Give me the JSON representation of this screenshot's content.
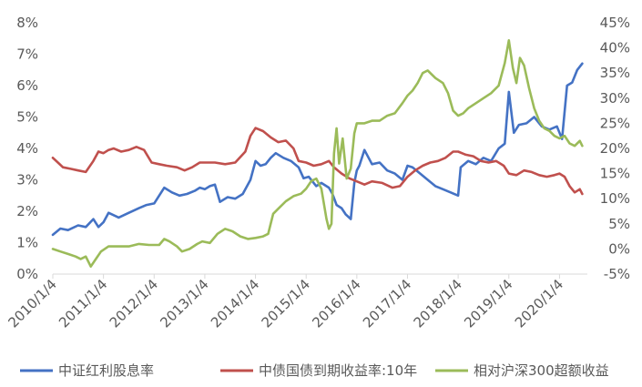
{
  "chart_data": {
    "type": "line",
    "title": "",
    "xlabel": "",
    "ylabel": "",
    "x_ticks": [
      "2010/1/4",
      "2011/1/4",
      "2012/1/4",
      "2013/1/4",
      "2014/1/4",
      "2015/1/4",
      "2016/1/4",
      "2017/1/4",
      "2018/1/4",
      "2019/1/4",
      "2020/1/4"
    ],
    "y_left": {
      "min": 0,
      "max": 8,
      "step": 1,
      "labels": [
        "0%",
        "1%",
        "2%",
        "3%",
        "4%",
        "5%",
        "6%",
        "7%",
        "8%"
      ]
    },
    "y_right": {
      "min": -5,
      "max": 45,
      "step": 5,
      "labels": [
        "-5%",
        "0%",
        "5%",
        "10%",
        "15%",
        "20%",
        "25%",
        "30%",
        "35%",
        "40%",
        "45%"
      ]
    },
    "grid": false,
    "legend_position": "bottom",
    "series": [
      {
        "name": "中证红利股息率",
        "axis": "left",
        "color": "#4472c4",
        "points": [
          [
            2010.0,
            1.25
          ],
          [
            2010.15,
            1.45
          ],
          [
            2010.3,
            1.4
          ],
          [
            2010.5,
            1.55
          ],
          [
            2010.65,
            1.5
          ],
          [
            2010.8,
            1.75
          ],
          [
            2010.9,
            1.5
          ],
          [
            2011.0,
            1.65
          ],
          [
            2011.1,
            1.95
          ],
          [
            2011.3,
            1.8
          ],
          [
            2011.5,
            1.95
          ],
          [
            2011.7,
            2.1
          ],
          [
            2011.85,
            2.2
          ],
          [
            2012.0,
            2.25
          ],
          [
            2012.1,
            2.5
          ],
          [
            2012.2,
            2.75
          ],
          [
            2012.35,
            2.6
          ],
          [
            2012.5,
            2.5
          ],
          [
            2012.65,
            2.55
          ],
          [
            2012.8,
            2.65
          ],
          [
            2012.9,
            2.75
          ],
          [
            2013.0,
            2.7
          ],
          [
            2013.1,
            2.8
          ],
          [
            2013.2,
            2.85
          ],
          [
            2013.3,
            2.3
          ],
          [
            2013.45,
            2.45
          ],
          [
            2013.6,
            2.4
          ],
          [
            2013.75,
            2.55
          ],
          [
            2013.9,
            3.0
          ],
          [
            2014.0,
            3.6
          ],
          [
            2014.1,
            3.45
          ],
          [
            2014.2,
            3.5
          ],
          [
            2014.3,
            3.7
          ],
          [
            2014.4,
            3.85
          ],
          [
            2014.55,
            3.7
          ],
          [
            2014.7,
            3.6
          ],
          [
            2014.85,
            3.4
          ],
          [
            2014.95,
            3.05
          ],
          [
            2015.05,
            3.1
          ],
          [
            2015.2,
            2.8
          ],
          [
            2015.3,
            2.9
          ],
          [
            2015.45,
            2.75
          ],
          [
            2015.52,
            2.55
          ],
          [
            2015.6,
            2.2
          ],
          [
            2015.7,
            2.1
          ],
          [
            2015.78,
            1.9
          ],
          [
            2015.88,
            1.75
          ],
          [
            2015.95,
            2.9
          ],
          [
            2016.0,
            3.3
          ],
          [
            2016.05,
            3.45
          ],
          [
            2016.15,
            3.95
          ],
          [
            2016.3,
            3.5
          ],
          [
            2016.45,
            3.55
          ],
          [
            2016.6,
            3.3
          ],
          [
            2016.75,
            3.2
          ],
          [
            2016.9,
            3.0
          ],
          [
            2017.0,
            3.45
          ],
          [
            2017.1,
            3.4
          ],
          [
            2017.25,
            3.2
          ],
          [
            2017.4,
            3.0
          ],
          [
            2017.55,
            2.8
          ],
          [
            2017.7,
            2.7
          ],
          [
            2017.85,
            2.6
          ],
          [
            2018.0,
            2.5
          ],
          [
            2018.05,
            3.4
          ],
          [
            2018.2,
            3.6
          ],
          [
            2018.35,
            3.5
          ],
          [
            2018.5,
            3.7
          ],
          [
            2018.65,
            3.6
          ],
          [
            2018.8,
            4.0
          ],
          [
            2018.92,
            4.15
          ],
          [
            2019.0,
            5.8
          ],
          [
            2019.1,
            4.5
          ],
          [
            2019.2,
            4.75
          ],
          [
            2019.35,
            4.8
          ],
          [
            2019.5,
            5.0
          ],
          [
            2019.65,
            4.7
          ],
          [
            2019.8,
            4.6
          ],
          [
            2019.95,
            4.7
          ],
          [
            2020.05,
            4.3
          ],
          [
            2020.15,
            6.0
          ],
          [
            2020.25,
            6.1
          ],
          [
            2020.35,
            6.5
          ],
          [
            2020.45,
            6.7
          ]
        ]
      },
      {
        "name": "中债国债到期收益率:10年",
        "axis": "left",
        "color": "#c0504d",
        "points": [
          [
            2010.0,
            3.7
          ],
          [
            2010.1,
            3.55
          ],
          [
            2010.2,
            3.4
          ],
          [
            2010.35,
            3.35
          ],
          [
            2010.5,
            3.3
          ],
          [
            2010.65,
            3.25
          ],
          [
            2010.8,
            3.6
          ],
          [
            2010.9,
            3.9
          ],
          [
            2011.0,
            3.85
          ],
          [
            2011.1,
            3.95
          ],
          [
            2011.2,
            4.0
          ],
          [
            2011.35,
            3.9
          ],
          [
            2011.5,
            3.95
          ],
          [
            2011.65,
            4.05
          ],
          [
            2011.8,
            3.95
          ],
          [
            2011.95,
            3.55
          ],
          [
            2012.1,
            3.5
          ],
          [
            2012.25,
            3.45
          ],
          [
            2012.45,
            3.4
          ],
          [
            2012.6,
            3.3
          ],
          [
            2012.75,
            3.4
          ],
          [
            2012.9,
            3.55
          ],
          [
            2013.0,
            3.55
          ],
          [
            2013.2,
            3.55
          ],
          [
            2013.4,
            3.5
          ],
          [
            2013.6,
            3.55
          ],
          [
            2013.8,
            3.9
          ],
          [
            2013.9,
            4.4
          ],
          [
            2014.0,
            4.65
          ],
          [
            2014.15,
            4.55
          ],
          [
            2014.3,
            4.35
          ],
          [
            2014.45,
            4.2
          ],
          [
            2014.6,
            4.25
          ],
          [
            2014.75,
            4.0
          ],
          [
            2014.85,
            3.6
          ],
          [
            2015.0,
            3.55
          ],
          [
            2015.15,
            3.45
          ],
          [
            2015.3,
            3.5
          ],
          [
            2015.45,
            3.6
          ],
          [
            2015.55,
            3.4
          ],
          [
            2015.7,
            3.2
          ],
          [
            2015.85,
            3.05
          ],
          [
            2016.0,
            2.95
          ],
          [
            2016.15,
            2.85
          ],
          [
            2016.3,
            2.95
          ],
          [
            2016.5,
            2.9
          ],
          [
            2016.7,
            2.75
          ],
          [
            2016.85,
            2.8
          ],
          [
            2017.0,
            3.1
          ],
          [
            2017.15,
            3.3
          ],
          [
            2017.3,
            3.45
          ],
          [
            2017.45,
            3.55
          ],
          [
            2017.6,
            3.6
          ],
          [
            2017.75,
            3.7
          ],
          [
            2017.9,
            3.9
          ],
          [
            2018.0,
            3.9
          ],
          [
            2018.15,
            3.8
          ],
          [
            2018.3,
            3.75
          ],
          [
            2018.45,
            3.6
          ],
          [
            2018.6,
            3.55
          ],
          [
            2018.75,
            3.6
          ],
          [
            2018.9,
            3.45
          ],
          [
            2019.0,
            3.2
          ],
          [
            2019.15,
            3.15
          ],
          [
            2019.3,
            3.3
          ],
          [
            2019.45,
            3.25
          ],
          [
            2019.6,
            3.15
          ],
          [
            2019.75,
            3.1
          ],
          [
            2019.9,
            3.15
          ],
          [
            2020.0,
            3.2
          ],
          [
            2020.1,
            3.1
          ],
          [
            2020.2,
            2.8
          ],
          [
            2020.3,
            2.6
          ],
          [
            2020.4,
            2.7
          ],
          [
            2020.45,
            2.55
          ]
        ]
      },
      {
        "name": "相对沪深300超额收益",
        "axis": "right",
        "color": "#9bbb59",
        "points": [
          [
            2010.0,
            0.0
          ],
          [
            2010.15,
            -0.5
          ],
          [
            2010.3,
            -1.0
          ],
          [
            2010.45,
            -1.5
          ],
          [
            2010.55,
            -2.0
          ],
          [
            2010.65,
            -1.5
          ],
          [
            2010.75,
            -3.5
          ],
          [
            2010.85,
            -2.0
          ],
          [
            2010.95,
            -0.5
          ],
          [
            2011.1,
            0.5
          ],
          [
            2011.3,
            0.5
          ],
          [
            2011.5,
            0.5
          ],
          [
            2011.7,
            1.0
          ],
          [
            2011.9,
            0.8
          ],
          [
            2012.1,
            0.8
          ],
          [
            2012.2,
            2.0
          ],
          [
            2012.3,
            1.5
          ],
          [
            2012.45,
            0.5
          ],
          [
            2012.55,
            -0.5
          ],
          [
            2012.7,
            0.0
          ],
          [
            2012.85,
            1.0
          ],
          [
            2012.95,
            1.5
          ],
          [
            2013.1,
            1.2
          ],
          [
            2013.25,
            3.0
          ],
          [
            2013.4,
            4.0
          ],
          [
            2013.55,
            3.5
          ],
          [
            2013.7,
            2.5
          ],
          [
            2013.85,
            2.0
          ],
          [
            2014.0,
            2.2
          ],
          [
            2014.15,
            2.5
          ],
          [
            2014.25,
            3.0
          ],
          [
            2014.35,
            7.0
          ],
          [
            2014.45,
            8.0
          ],
          [
            2014.6,
            9.5
          ],
          [
            2014.75,
            10.5
          ],
          [
            2014.9,
            11.0
          ],
          [
            2015.0,
            12.0
          ],
          [
            2015.1,
            13.5
          ],
          [
            2015.2,
            14.0
          ],
          [
            2015.3,
            12.0
          ],
          [
            2015.4,
            6.0
          ],
          [
            2015.45,
            4.0
          ],
          [
            2015.5,
            5.0
          ],
          [
            2015.55,
            19.0
          ],
          [
            2015.6,
            24.0
          ],
          [
            2015.65,
            17.0
          ],
          [
            2015.72,
            22.0
          ],
          [
            2015.8,
            14.0
          ],
          [
            2015.88,
            16.0
          ],
          [
            2015.95,
            23.0
          ],
          [
            2016.0,
            25.0
          ],
          [
            2016.15,
            25.0
          ],
          [
            2016.3,
            25.5
          ],
          [
            2016.45,
            25.5
          ],
          [
            2016.6,
            26.5
          ],
          [
            2016.75,
            27.0
          ],
          [
            2016.9,
            29.0
          ],
          [
            2017.0,
            30.5
          ],
          [
            2017.1,
            31.5
          ],
          [
            2017.2,
            33.0
          ],
          [
            2017.3,
            35.0
          ],
          [
            2017.4,
            35.5
          ],
          [
            2017.55,
            34.0
          ],
          [
            2017.7,
            33.0
          ],
          [
            2017.8,
            31.0
          ],
          [
            2017.9,
            27.5
          ],
          [
            2018.0,
            26.5
          ],
          [
            2018.1,
            27.0
          ],
          [
            2018.2,
            28.0
          ],
          [
            2018.35,
            29.0
          ],
          [
            2018.5,
            30.0
          ],
          [
            2018.65,
            31.0
          ],
          [
            2018.8,
            32.5
          ],
          [
            2018.92,
            37.0
          ],
          [
            2019.0,
            41.5
          ],
          [
            2019.08,
            36.0
          ],
          [
            2019.15,
            33.0
          ],
          [
            2019.22,
            38.0
          ],
          [
            2019.3,
            36.5
          ],
          [
            2019.4,
            32.0
          ],
          [
            2019.5,
            28.0
          ],
          [
            2019.6,
            25.5
          ],
          [
            2019.7,
            24.0
          ],
          [
            2019.8,
            23.5
          ],
          [
            2019.9,
            22.5
          ],
          [
            2020.0,
            22.0
          ],
          [
            2020.1,
            22.5
          ],
          [
            2020.2,
            21.0
          ],
          [
            2020.3,
            20.5
          ],
          [
            2020.4,
            21.5
          ],
          [
            2020.45,
            20.5
          ]
        ]
      }
    ]
  }
}
